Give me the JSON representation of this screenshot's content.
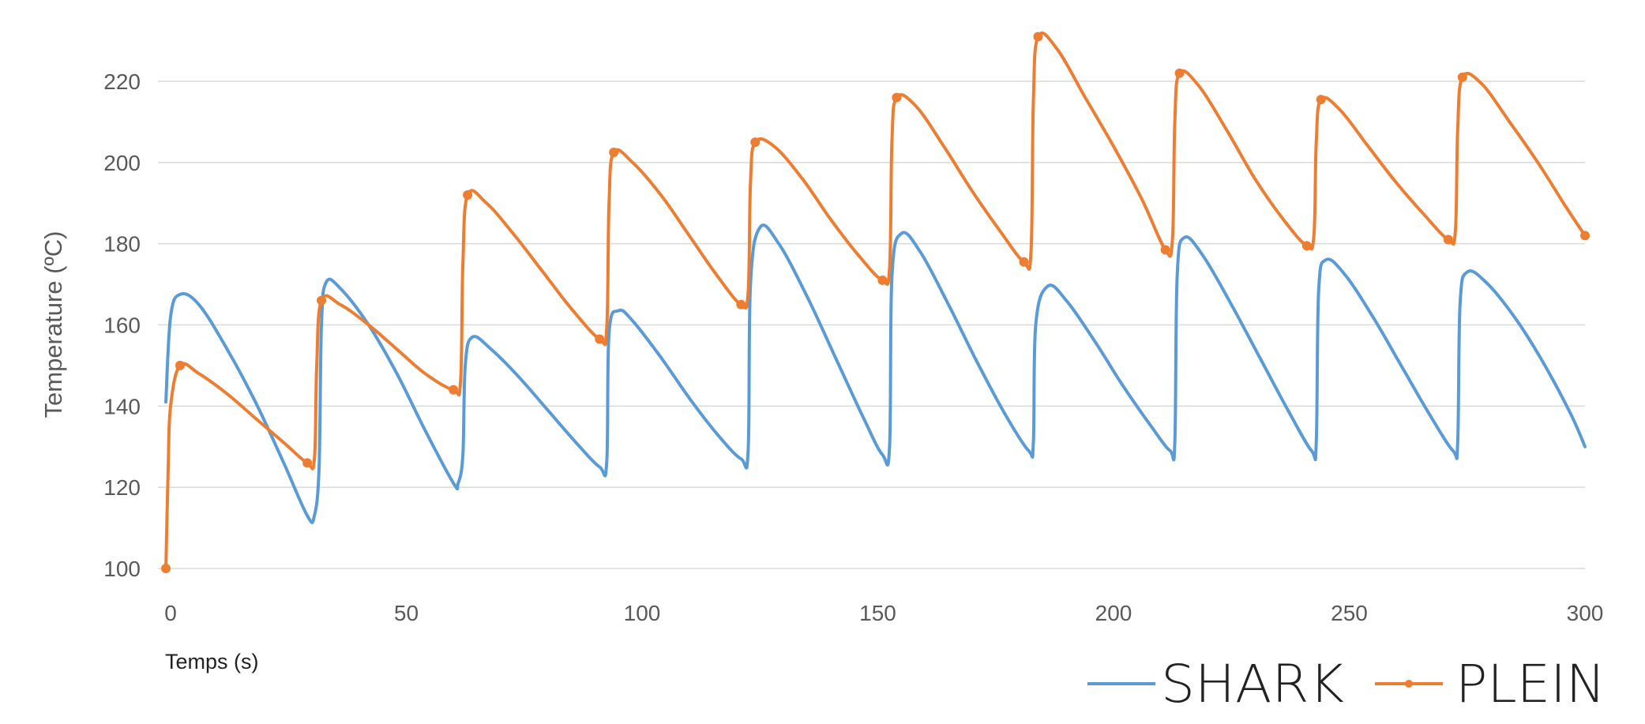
{
  "chart_data": {
    "type": "line",
    "title": "",
    "xlabel": "Temps (s)",
    "ylabel": "Temperature (ºC)",
    "xlim": [
      0,
      300
    ],
    "ylim": [
      100,
      230
    ],
    "x_ticks": [
      0,
      50,
      100,
      150,
      200,
      250,
      300
    ],
    "y_ticks": [
      100,
      120,
      140,
      160,
      180,
      200,
      220
    ],
    "grid": true,
    "legend_position": "bottom-right",
    "series": [
      {
        "name": "SHARK",
        "color": "#5b9bd5",
        "markers": false,
        "points": [
          [
            -1,
            141
          ],
          [
            0,
            162
          ],
          [
            2,
            167.5
          ],
          [
            6,
            165
          ],
          [
            12,
            154
          ],
          [
            18,
            141
          ],
          [
            24,
            126
          ],
          [
            29,
            113
          ],
          [
            30.5,
            113
          ],
          [
            31.5,
            125
          ],
          [
            32,
            160
          ],
          [
            33,
            170.5
          ],
          [
            36,
            169
          ],
          [
            42,
            160
          ],
          [
            48,
            148
          ],
          [
            54,
            134
          ],
          [
            60,
            121
          ],
          [
            61,
            121
          ],
          [
            62,
            128
          ],
          [
            62.5,
            150
          ],
          [
            64,
            157
          ],
          [
            68,
            154
          ],
          [
            74,
            147
          ],
          [
            80,
            139
          ],
          [
            86,
            131
          ],
          [
            91,
            125
          ],
          [
            92.5,
            126
          ],
          [
            93,
            158
          ],
          [
            95,
            163.5
          ],
          [
            98,
            161
          ],
          [
            104,
            152
          ],
          [
            110,
            142
          ],
          [
            116,
            133
          ],
          [
            121,
            127
          ],
          [
            122.5,
            129
          ],
          [
            123,
            170
          ],
          [
            125,
            184
          ],
          [
            129,
            180
          ],
          [
            135,
            167
          ],
          [
            141,
            152
          ],
          [
            147,
            137
          ],
          [
            151,
            128
          ],
          [
            152.5,
            130
          ],
          [
            153,
            172
          ],
          [
            155,
            182.5
          ],
          [
            159,
            178
          ],
          [
            165,
            165
          ],
          [
            171,
            151
          ],
          [
            177,
            138
          ],
          [
            182,
            129
          ],
          [
            183,
            131
          ],
          [
            183.5,
            160
          ],
          [
            186,
            169.5
          ],
          [
            190,
            166
          ],
          [
            196,
            156
          ],
          [
            202,
            145
          ],
          [
            208,
            135
          ],
          [
            212,
            129
          ],
          [
            213,
            131
          ],
          [
            213.5,
            172
          ],
          [
            215,
            181.5
          ],
          [
            219,
            177
          ],
          [
            225,
            165
          ],
          [
            231,
            152
          ],
          [
            237,
            139
          ],
          [
            242,
            129
          ],
          [
            243,
            131
          ],
          [
            243.5,
            168
          ],
          [
            245,
            176
          ],
          [
            249,
            172.5
          ],
          [
            255,
            162
          ],
          [
            261,
            150
          ],
          [
            267,
            138
          ],
          [
            272,
            129
          ],
          [
            273,
            131
          ],
          [
            273.5,
            165
          ],
          [
            275,
            173
          ],
          [
            279,
            170.5
          ],
          [
            285,
            162
          ],
          [
            291,
            151
          ],
          [
            297,
            138
          ],
          [
            300,
            130
          ]
        ]
      },
      {
        "name": "PLEIN",
        "color": "#ed7d31",
        "markers": true,
        "marker_x": [
          -1,
          2,
          29,
          32,
          60,
          63,
          91,
          94,
          121,
          124,
          151,
          154,
          181,
          184,
          211,
          214,
          241,
          244,
          271,
          274,
          300
        ],
        "points": [
          [
            -1,
            100
          ],
          [
            -0.5,
            125
          ],
          [
            0,
            140
          ],
          [
            2,
            150
          ],
          [
            6,
            148
          ],
          [
            12,
            143
          ],
          [
            18,
            137
          ],
          [
            24,
            131
          ],
          [
            29,
            126
          ],
          [
            30.5,
            127
          ],
          [
            31,
            150
          ],
          [
            32,
            166
          ],
          [
            36,
            165
          ],
          [
            42,
            160
          ],
          [
            48,
            154
          ],
          [
            54,
            148
          ],
          [
            60,
            144
          ],
          [
            61.5,
            146
          ],
          [
            62,
            175
          ],
          [
            63,
            192
          ],
          [
            67,
            190
          ],
          [
            73,
            182
          ],
          [
            79,
            173
          ],
          [
            85,
            164
          ],
          [
            91,
            156.5
          ],
          [
            92.5,
            159
          ],
          [
            93,
            190
          ],
          [
            94,
            202.5
          ],
          [
            98,
            200
          ],
          [
            104,
            192
          ],
          [
            110,
            182
          ],
          [
            116,
            172
          ],
          [
            121,
            165
          ],
          [
            122.5,
            168
          ],
          [
            123,
            195
          ],
          [
            124,
            205
          ],
          [
            128,
            204
          ],
          [
            134,
            196
          ],
          [
            140,
            186
          ],
          [
            146,
            177
          ],
          [
            151,
            171
          ],
          [
            152.5,
            174
          ],
          [
            153,
            205
          ],
          [
            154,
            216
          ],
          [
            158,
            214
          ],
          [
            164,
            204
          ],
          [
            170,
            193
          ],
          [
            176,
            183
          ],
          [
            181,
            175.5
          ],
          [
            182.5,
            178
          ],
          [
            183,
            215
          ],
          [
            184,
            231
          ],
          [
            188,
            228
          ],
          [
            194,
            216
          ],
          [
            200,
            204
          ],
          [
            206,
            191
          ],
          [
            211,
            178.5
          ],
          [
            212.5,
            181
          ],
          [
            213,
            210
          ],
          [
            214,
            222
          ],
          [
            218,
            219
          ],
          [
            224,
            208
          ],
          [
            230,
            196
          ],
          [
            236,
            186
          ],
          [
            241,
            179.5
          ],
          [
            242.5,
            182
          ],
          [
            243,
            205
          ],
          [
            244,
            215.5
          ],
          [
            248,
            213
          ],
          [
            254,
            204
          ],
          [
            260,
            195
          ],
          [
            266,
            187
          ],
          [
            271,
            181
          ],
          [
            272.5,
            183
          ],
          [
            273,
            208
          ],
          [
            274,
            221
          ],
          [
            278,
            219.5
          ],
          [
            284,
            210
          ],
          [
            290,
            200
          ],
          [
            296,
            189
          ],
          [
            300,
            182
          ]
        ]
      }
    ]
  }
}
